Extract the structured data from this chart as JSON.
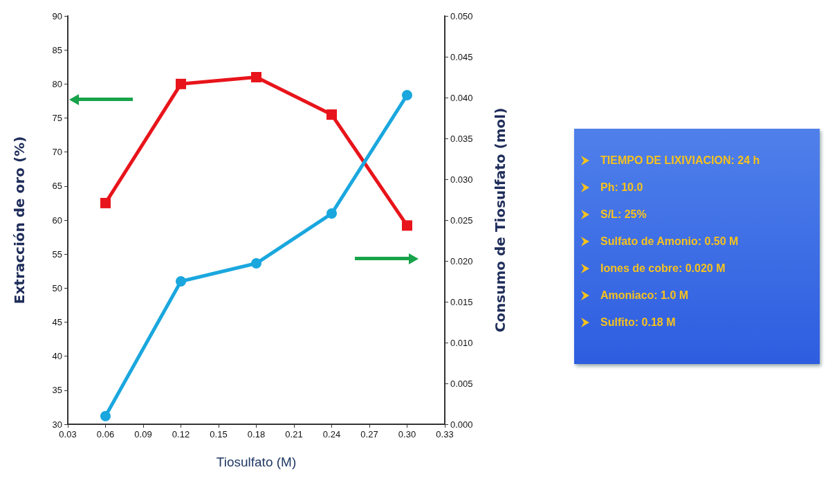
{
  "chart_data": {
    "type": "line",
    "xlabel": "Tiosulfato (M)",
    "ylabel": "Extracción de oro (%)",
    "y2label": "Consumo de Tiosulfato (mol)",
    "x": [
      0.06,
      0.12,
      0.18,
      0.24,
      0.3
    ],
    "series": [
      {
        "color": "#e8141b",
        "marker": "square",
        "values": [
          62.5,
          80,
          81,
          75.5,
          59.2
        ]
      },
      {
        "color": "#1aa7de",
        "marker": "circle",
        "axis": "y2",
        "values": [
          0.001,
          0.0175,
          0.0197,
          0.0258,
          0.0403
        ]
      }
    ],
    "xlim": [
      0.03,
      0.33
    ],
    "xticks": [
      0.03,
      0.06,
      0.09,
      0.12,
      0.15,
      0.18,
      0.21,
      0.24,
      0.27,
      {
        "value": 0.3,
        "label": "0.30"
      },
      0.33
    ],
    "ylim": [
      30,
      90
    ],
    "yticks": [
      30,
      35,
      40,
      45,
      50,
      55,
      60,
      65,
      70,
      75,
      80,
      85,
      90
    ],
    "y2lim": [
      0,
      0.05
    ],
    "y2ticks": [
      {
        "value": 0,
        "label": "0.000"
      },
      {
        "value": 0.005,
        "label": "0.005"
      },
      {
        "value": 0.01,
        "label": "0.010"
      },
      {
        "value": 0.015,
        "label": "0.015"
      },
      {
        "value": 0.02,
        "label": "0.020"
      },
      {
        "value": 0.025,
        "label": "0.025"
      },
      {
        "value": 0.03,
        "label": "0.030"
      },
      {
        "value": 0.035,
        "label": "0.035"
      },
      {
        "value": 0.04,
        "label": "0.040"
      },
      {
        "value": 0.045,
        "label": "0.045"
      },
      {
        "value": 0.05,
        "label": "0.050"
      }
    ],
    "annotations": [
      "TIEMPO DE LIXIVIACION: 24 h",
      "Ph: 10.0",
      "S/L: 25%",
      "Sulfato de Amonio: 0.50 M",
      "Iones de cobre: 0.020 M",
      "Amoniaco: 1.0 M",
      "Sulfito: 0.18 M"
    ],
    "grid": false
  }
}
